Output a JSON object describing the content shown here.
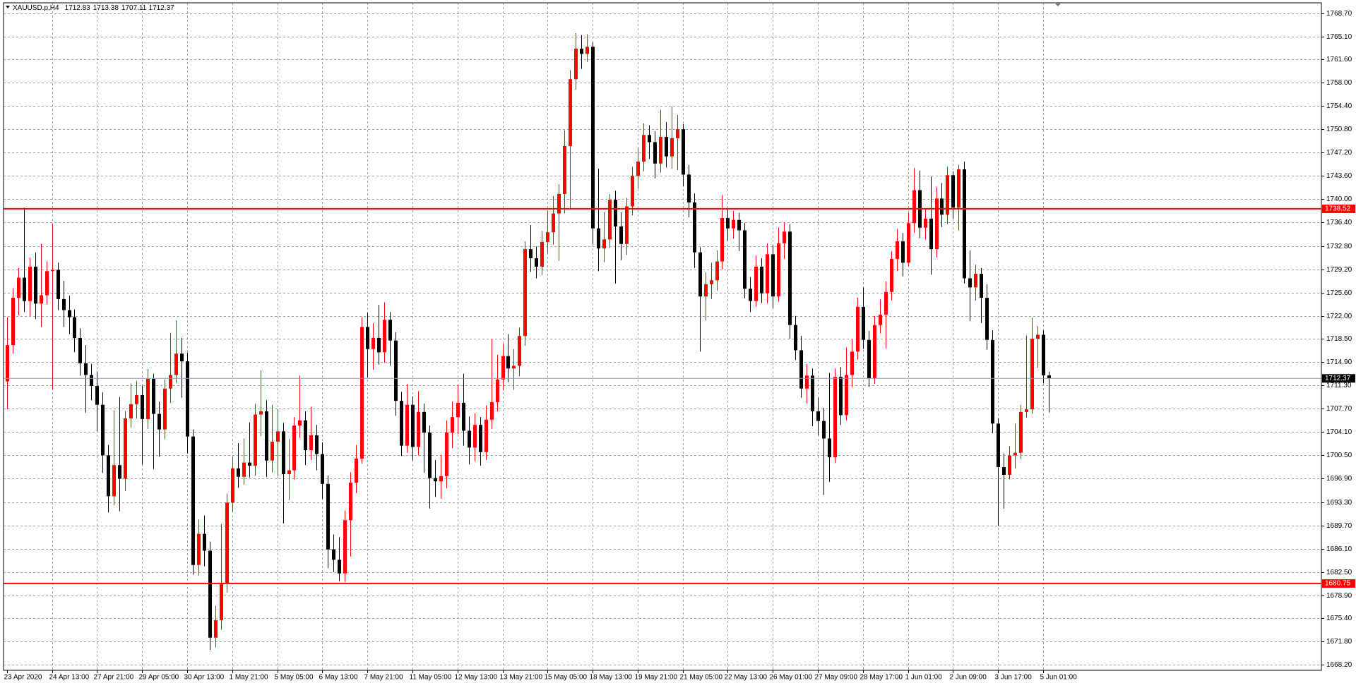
{
  "chart_data": {
    "type": "candlestick",
    "symbol": "XAUUSD.p,H4",
    "up_color": "#ff0000",
    "down_color": "#000000",
    "grid": true,
    "ylim": [
      1667.36,
      1770.28
    ],
    "yticks": [
      {
        "value": 1768.7,
        "label": "1768.70"
      },
      {
        "value": 1765.1,
        "label": "1765.10"
      },
      {
        "value": 1761.6,
        "label": "1761.60"
      },
      {
        "value": 1758.0,
        "label": "1758.00"
      },
      {
        "value": 1754.4,
        "label": "1754.40"
      },
      {
        "value": 1750.8,
        "label": "1750.80"
      },
      {
        "value": 1747.2,
        "label": "1747.20"
      },
      {
        "value": 1743.6,
        "label": "1743.60"
      },
      {
        "value": 1740.0,
        "label": "1740.00"
      },
      {
        "value": 1736.4,
        "label": "1736.40"
      },
      {
        "value": 1732.8,
        "label": "1732.80"
      },
      {
        "value": 1729.2,
        "label": "1729.20"
      },
      {
        "value": 1725.6,
        "label": "1725.60"
      },
      {
        "value": 1722.0,
        "label": "1722.00"
      },
      {
        "value": 1718.5,
        "label": "1718.50"
      },
      {
        "value": 1714.9,
        "label": "1714.90"
      },
      {
        "value": 1711.3,
        "label": "1711.30"
      },
      {
        "value": 1707.7,
        "label": "1707.70"
      },
      {
        "value": 1704.1,
        "label": "1704.10"
      },
      {
        "value": 1700.5,
        "label": "1700.50"
      },
      {
        "value": 1696.9,
        "label": "1696.90"
      },
      {
        "value": 1693.3,
        "label": "1693.30"
      },
      {
        "value": 1689.7,
        "label": "1689.70"
      },
      {
        "value": 1686.1,
        "label": "1686.10"
      },
      {
        "value": 1682.5,
        "label": "1682.50"
      },
      {
        "value": 1678.9,
        "label": "1678.90"
      },
      {
        "value": 1675.4,
        "label": "1675.40"
      },
      {
        "value": 1671.8,
        "label": "1671.80"
      },
      {
        "value": 1668.2,
        "label": "1668.20"
      }
    ],
    "hlines": [
      1738.52,
      1680.75
    ],
    "hline_color": "#ff0000",
    "categories": [
      "23 Apr 2020",
      null,
      null,
      null,
      null,
      null,
      null,
      null,
      "24 Apr 13:00",
      null,
      null,
      null,
      null,
      null,
      null,
      null,
      "27 Apr 21:00",
      null,
      null,
      null,
      null,
      null,
      null,
      null,
      "29 Apr 05:00",
      null,
      null,
      null,
      null,
      null,
      null,
      null,
      "30 Apr 13:00",
      null,
      null,
      null,
      null,
      null,
      null,
      null,
      "1 May 21:00",
      null,
      null,
      null,
      null,
      null,
      null,
      null,
      "5 May 05:00",
      null,
      null,
      null,
      null,
      null,
      null,
      null,
      "6 May 13:00",
      null,
      null,
      null,
      null,
      null,
      null,
      null,
      "7 May 21:00",
      null,
      null,
      null,
      null,
      null,
      null,
      null,
      "11 May 05:00",
      null,
      null,
      null,
      null,
      null,
      null,
      null,
      "12 May 13:00",
      null,
      null,
      null,
      null,
      null,
      null,
      null,
      "13 May 21:00",
      null,
      null,
      null,
      null,
      null,
      null,
      null,
      "15 May 05:00",
      null,
      null,
      null,
      null,
      null,
      null,
      null,
      "18 May 13:00",
      null,
      null,
      null,
      null,
      null,
      null,
      null,
      "19 May 21:00",
      null,
      null,
      null,
      null,
      null,
      null,
      null,
      "21 May 05:00",
      null,
      null,
      null,
      null,
      null,
      null,
      null,
      "22 May 13:00",
      null,
      null,
      null,
      null,
      null,
      null,
      null,
      "26 May 01:00",
      null,
      null,
      null,
      null,
      null,
      null,
      null,
      "27 May 09:00",
      null,
      null,
      null,
      null,
      null,
      null,
      null,
      "28 May 17:00",
      null,
      null,
      null,
      null,
      null,
      null,
      null,
      "1 Jun 01:00",
      null,
      null,
      null,
      null,
      null,
      null,
      null,
      "2 Jun 09:00",
      null,
      null,
      null,
      null,
      null,
      null,
      null,
      "3 Jun 17:00",
      null,
      null,
      null,
      null,
      null,
      null,
      null,
      "5 Jun 01:00",
      null
    ],
    "open": [
      1711.9,
      1717.5,
      1724.8,
      1727.9,
      1724.3,
      1729.6,
      1723.9,
      1725.2,
      1728.9,
      1729.1,
      1724.6,
      1722.9,
      1721.8,
      1718.6,
      1714.7,
      1712.9,
      1711.2,
      1708.3,
      1700.5,
      1694.2,
      1699.0,
      1696.9,
      1706.2,
      1708.4,
      1709.8,
      1706.1,
      1712.3,
      1706.9,
      1704.5,
      1710.8,
      1712.9,
      1716.2,
      1715.0,
      1703.4,
      1683.6,
      1688.4,
      1685.8,
      1672.4,
      1675.1,
      1680.8,
      1693.2,
      1698.5,
      1697.2,
      1699.4,
      1698.9,
      1706.8,
      1707.3,
      1699.7,
      1702.6,
      1704.2,
      1697.6,
      1698.2,
      1705.1,
      1705.9,
      1701.3,
      1703.6,
      1700.7,
      1696.1,
      1686.0,
      1684.4,
      1682.3,
      1690.5,
      1696.3,
      1700.0,
      1720.3,
      1716.9,
      1718.6,
      1716.4,
      1721.4,
      1718.2,
      1708.9,
      1702.0,
      1708.3,
      1701.8,
      1707.2,
      1704.0,
      1697.0,
      1696.5,
      1697.3,
      1704.0,
      1706.4,
      1708.6,
      1704.3,
      1701.7,
      1705.2,
      1701.0,
      1706.0,
      1708.7,
      1712.2,
      1715.8,
      1713.9,
      1714.3,
      1718.9,
      1732.3,
      1730.9,
      1729.6,
      1733.4,
      1734.9,
      1737.8,
      1740.8,
      1748.2,
      1758.5,
      1763.2,
      1762.4,
      1763.5,
      1735.5,
      1732.4,
      1733.8,
      1739.9,
      1735.8,
      1733.1,
      1738.9,
      1743.6,
      1745.8,
      1749.9,
      1748.8,
      1745.5,
      1749.6,
      1746.6,
      1749.4,
      1750.8,
      1743.8,
      1739.5,
      1731.8,
      1725.0,
      1726.9,
      1727.5,
      1730.4,
      1737.1,
      1735.5,
      1736.8,
      1735.2,
      1726.2,
      1724.3,
      1729.6,
      1725.5,
      1731.5,
      1725.0,
      1733.2,
      1735.0,
      1720.6,
      1716.7,
      1710.8,
      1712.8,
      1707.3,
      1705.8,
      1703.1,
      1700.2,
      1712.6,
      1706.7,
      1712.9,
      1716.5,
      1723.4,
      1718.3,
      1712.4,
      1720.6,
      1722.2,
      1725.7,
      1730.8,
      1733.5,
      1730.2,
      1736.3,
      1741.4,
      1735.6,
      1737.0,
      1732.3,
      1740.1,
      1737.6,
      1743.7,
      1738.7,
      1744.6,
      1727.8,
      1726.4,
      1728.5,
      1724.8,
      1718.3,
      1705.4,
      1698.7,
      1697.5,
      1700.5,
      1700.9,
      1707.2,
      1707.6,
      1718.5,
      1719.1,
      1712.83
    ],
    "high": [
      1721.8,
      1726.3,
      1729.4,
      1738.7,
      1731.0,
      1731.8,
      1733.1,
      1730.4,
      1736.2,
      1730.2,
      1727.4,
      1725.1,
      1723.0,
      1720.1,
      1717.5,
      1714.6,
      1713.4,
      1710.2,
      1702.1,
      1707.4,
      1709.5,
      1707.3,
      1711.6,
      1712.0,
      1711.2,
      1713.8,
      1713.1,
      1708.8,
      1712.2,
      1719.4,
      1721.3,
      1718.6,
      1716.3,
      1704.5,
      1690.6,
      1691.2,
      1687.2,
      1677.3,
      1689.9,
      1694.6,
      1700.3,
      1702.4,
      1703.1,
      1705.6,
      1708.4,
      1713.6,
      1709.0,
      1708.3,
      1707.6,
      1705.5,
      1703.0,
      1706.4,
      1712.8,
      1707.3,
      1708.0,
      1705.2,
      1702.5,
      1697.4,
      1688.3,
      1687.9,
      1692.0,
      1697.9,
      1702.1,
      1721.8,
      1722.5,
      1720.9,
      1723.7,
      1724.1,
      1722.6,
      1719.5,
      1710.3,
      1711.5,
      1709.6,
      1710.4,
      1708.5,
      1705.1,
      1699.8,
      1700.6,
      1705.9,
      1708.8,
      1711.3,
      1713.1,
      1706.5,
      1707.0,
      1706.4,
      1708.2,
      1718.4,
      1716.0,
      1717.7,
      1719.2,
      1716.9,
      1720.2,
      1733.5,
      1736.0,
      1732.7,
      1735.1,
      1738.2,
      1740.5,
      1742.3,
      1750.6,
      1759.9,
      1765.6,
      1765.3,
      1765.4,
      1764.2,
      1744.7,
      1738.0,
      1740.8,
      1741.3,
      1738.0,
      1740.2,
      1745.0,
      1747.9,
      1751.7,
      1751.4,
      1750.5,
      1753.8,
      1751.9,
      1754.3,
      1753.0,
      1751.6,
      1745.3,
      1740.9,
      1732.6,
      1728.7,
      1730.2,
      1732.1,
      1740.6,
      1738.5,
      1738.2,
      1737.9,
      1736.3,
      1728.0,
      1731.3,
      1730.9,
      1733.2,
      1732.9,
      1735.6,
      1736.4,
      1736.1,
      1722.0,
      1718.9,
      1714.6,
      1713.9,
      1709.4,
      1707.8,
      1713.2,
      1713.9,
      1714.1,
      1717.1,
      1718.4,
      1724.8,
      1726.4,
      1719.7,
      1722.0,
      1724.5,
      1727.3,
      1732.0,
      1735.4,
      1734.8,
      1737.9,
      1744.8,
      1744.4,
      1738.5,
      1743.5,
      1741.9,
      1742.5,
      1745.0,
      1744.3,
      1745.3,
      1745.8,
      1732.1,
      1729.9,
      1729.4,
      1726.9,
      1719.8,
      1706.2,
      1700.8,
      1701.9,
      1705.4,
      1708.3,
      1719.0,
      1721.7,
      1720.4,
      1719.8,
      1713.38
    ],
    "low": [
      1707.6,
      1716.2,
      1722.1,
      1722.6,
      1722.0,
      1721.5,
      1720.3,
      1723.8,
      1710.7,
      1722.9,
      1720.3,
      1719.2,
      1716.4,
      1712.8,
      1707.1,
      1709.0,
      1704.2,
      1697.8,
      1691.7,
      1692.8,
      1691.9,
      1695.0,
      1704.8,
      1706.2,
      1699.1,
      1704.6,
      1698.4,
      1700.3,
      1703.0,
      1708.6,
      1711.7,
      1709.4,
      1700.8,
      1682.1,
      1682.0,
      1683.4,
      1670.5,
      1670.9,
      1673.6,
      1679.4,
      1691.8,
      1695.5,
      1696.0,
      1697.1,
      1697.4,
      1703.5,
      1697.2,
      1697.9,
      1697.3,
      1690.0,
      1693.6,
      1696.8,
      1703.2,
      1699.0,
      1699.8,
      1698.2,
      1693.8,
      1683.1,
      1682.5,
      1681.1,
      1681.0,
      1684.9,
      1694.7,
      1699.2,
      1712.5,
      1713.7,
      1714.5,
      1714.8,
      1714.3,
      1706.6,
      1700.4,
      1700.9,
      1699.7,
      1700.5,
      1697.8,
      1692.3,
      1694.1,
      1693.8,
      1695.4,
      1701.6,
      1703.8,
      1702.0,
      1699.1,
      1699.6,
      1698.9,
      1699.8,
      1704.6,
      1707.3,
      1710.5,
      1711.8,
      1710.6,
      1712.7,
      1717.4,
      1728.8,
      1727.8,
      1728.3,
      1731.6,
      1733.0,
      1730.5,
      1737.8,
      1738.4,
      1756.9,
      1760.1,
      1761.2,
      1733.1,
      1728.9,
      1730.3,
      1732.5,
      1727.0,
      1730.6,
      1731.4,
      1737.5,
      1741.6,
      1744.3,
      1746.2,
      1743.2,
      1744.1,
      1744.9,
      1744.7,
      1744.5,
      1742.0,
      1737.2,
      1729.4,
      1716.5,
      1721.3,
      1724.6,
      1725.9,
      1729.2,
      1733.6,
      1733.9,
      1732.0,
      1724.7,
      1722.6,
      1723.4,
      1724.0,
      1723.9,
      1723.2,
      1724.2,
      1730.8,
      1718.5,
      1715.2,
      1709.4,
      1708.5,
      1705.0,
      1703.6,
      1694.4,
      1696.4,
      1699.3,
      1705.2,
      1705.9,
      1711.0,
      1715.3,
      1716.9,
      1711.1,
      1711.5,
      1719.3,
      1717.0,
      1724.4,
      1728.9,
      1728.1,
      1729.7,
      1734.8,
      1734.0,
      1733.8,
      1728.4,
      1731.0,
      1735.7,
      1736.2,
      1737.0,
      1735.2,
      1727.0,
      1721.2,
      1724.4,
      1720.9,
      1716.8,
      1703.9,
      1689.6,
      1692.3,
      1696.8,
      1698.5,
      1699.9,
      1706.3,
      1706.9,
      1714.0,
      1711.6,
      1707.11
    ],
    "close": [
      1717.5,
      1724.8,
      1727.9,
      1724.3,
      1729.6,
      1723.9,
      1725.2,
      1728.9,
      1729.1,
      1724.6,
      1722.9,
      1721.8,
      1718.6,
      1714.7,
      1712.9,
      1711.2,
      1708.3,
      1700.5,
      1694.2,
      1699.0,
      1696.9,
      1706.2,
      1708.4,
      1709.8,
      1706.1,
      1712.3,
      1706.9,
      1704.5,
      1710.8,
      1712.9,
      1716.2,
      1715.0,
      1703.4,
      1683.6,
      1688.4,
      1685.8,
      1672.4,
      1675.1,
      1680.8,
      1693.2,
      1698.5,
      1697.2,
      1699.4,
      1698.9,
      1706.8,
      1707.3,
      1699.7,
      1702.6,
      1704.2,
      1697.6,
      1698.2,
      1705.1,
      1705.9,
      1701.3,
      1703.6,
      1700.7,
      1696.1,
      1686.0,
      1684.4,
      1682.3,
      1690.5,
      1696.3,
      1700.0,
      1720.3,
      1716.9,
      1718.6,
      1716.4,
      1721.4,
      1718.2,
      1708.9,
      1702.0,
      1708.3,
      1701.8,
      1707.2,
      1704.0,
      1697.0,
      1696.5,
      1697.3,
      1704.0,
      1706.4,
      1708.6,
      1704.3,
      1701.7,
      1705.2,
      1701.0,
      1706.0,
      1708.7,
      1712.2,
      1715.8,
      1713.9,
      1714.3,
      1718.9,
      1732.3,
      1730.9,
      1729.6,
      1733.4,
      1734.9,
      1737.8,
      1740.8,
      1748.2,
      1758.5,
      1763.2,
      1762.4,
      1763.5,
      1735.5,
      1732.4,
      1733.8,
      1739.9,
      1735.8,
      1733.1,
      1738.9,
      1743.6,
      1745.8,
      1749.9,
      1748.8,
      1745.5,
      1749.6,
      1746.6,
      1749.4,
      1750.8,
      1743.8,
      1739.5,
      1731.8,
      1725.0,
      1726.9,
      1727.5,
      1730.4,
      1737.1,
      1735.5,
      1736.8,
      1735.2,
      1726.2,
      1724.3,
      1729.6,
      1725.5,
      1731.5,
      1725.0,
      1733.2,
      1735.0,
      1720.6,
      1716.7,
      1710.8,
      1712.8,
      1707.3,
      1705.8,
      1703.1,
      1700.2,
      1712.6,
      1706.7,
      1712.9,
      1716.5,
      1723.4,
      1718.3,
      1712.4,
      1720.6,
      1722.2,
      1725.7,
      1730.8,
      1733.5,
      1730.2,
      1736.3,
      1741.4,
      1735.6,
      1737.0,
      1732.3,
      1740.1,
      1737.6,
      1743.7,
      1738.7,
      1744.6,
      1727.8,
      1726.4,
      1728.5,
      1724.8,
      1718.3,
      1705.4,
      1698.7,
      1697.5,
      1700.5,
      1700.9,
      1707.2,
      1707.6,
      1718.5,
      1719.1,
      1712.83,
      1712.37
    ]
  }
}
